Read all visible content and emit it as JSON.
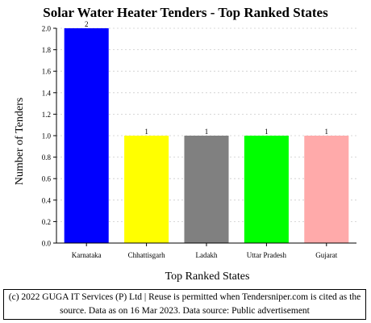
{
  "chart_data": {
    "type": "bar",
    "title": "Solar Water Heater Tenders - Top Ranked States",
    "xlabel": "Top Ranked States",
    "ylabel": "Number of Tenders",
    "categories": [
      "Karnataka",
      "Chhattisgarh",
      "Ladakh",
      "Uttar Pradesh",
      "Gujarat"
    ],
    "values": [
      2,
      1,
      1,
      1,
      1
    ],
    "value_labels": [
      "2",
      "1",
      "1",
      "1",
      "1"
    ],
    "colors": [
      "#0000ff",
      "#ffff00",
      "#808080",
      "#00ff00",
      "#ffaaaa"
    ],
    "ylim": [
      0,
      2.0
    ],
    "yticks": [
      "0.0",
      "0.2",
      "0.4",
      "0.6",
      "0.8",
      "1.0",
      "1.2",
      "1.4",
      "1.6",
      "1.8",
      "2.0"
    ],
    "grid": true,
    "legend": "none"
  },
  "footer": {
    "line1": "(c) 2022 GUGA IT Services (P) Ltd | Reuse is permitted when Tendersniper.com is cited as the",
    "line2": "source. Data as on 16 Mar 2023. Data source: Public advertisement"
  }
}
